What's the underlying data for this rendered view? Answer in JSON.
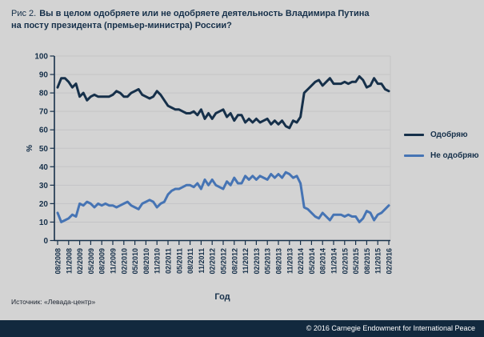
{
  "title": {
    "prefix": "Рис 2.",
    "line1": "Вы в целом одобряете или не одобряете деятельность Владимира Путина",
    "line2": "на посту президента (премьер-министра) России?"
  },
  "source": "Источник: «Левада-центр»",
  "footer": "© 2016 Carnegie Endowment for International Peace",
  "colors": {
    "background": "#d3d3d3",
    "axis_and_text": "#16304a",
    "approve_line": "#16304a",
    "disapprove_line": "#4674b4",
    "gridline": "#c4c4c6",
    "footer_bg": "#12293e",
    "footer_text": "#ffffff"
  },
  "chart_data": {
    "type": "line",
    "title": "Вы в целом одобряете или не одобряете деятельность Владимира Путина на посту президента (премьер-министра) России?",
    "xlabel": "Год",
    "ylabel": "%",
    "ylim": [
      0,
      100
    ],
    "y_ticks": [
      0,
      10,
      20,
      30,
      40,
      50,
      60,
      70,
      80,
      90,
      100
    ],
    "grid": "horizontal",
    "legend_position": "right",
    "x_unit": "monthly points from 08/2008 to 02/2016; ticks every 3 months",
    "x_tick_labels": [
      "08/2008",
      "11/2008",
      "02/2009",
      "05/2009",
      "08/2009",
      "11/2009",
      "02/2010",
      "05/2010",
      "08/2010",
      "11/2010",
      "02/2011",
      "05/2011",
      "08/2011",
      "11/2011",
      "02/2012",
      "05/2012",
      "08/2012",
      "11/2012",
      "02/2013",
      "05/2013",
      "08/2013",
      "11/2013",
      "02/2014",
      "05/2014",
      "08/2014",
      "11/2014",
      "02/2015",
      "05/2015",
      "08/2015",
      "11/2015",
      "02/2016"
    ],
    "series": [
      {
        "name": "Одобряю",
        "color": "#16304a",
        "values": [
          83,
          88,
          88,
          86,
          83,
          85,
          78,
          80,
          76,
          78,
          79,
          78,
          78,
          78,
          78,
          79,
          81,
          80,
          78,
          78,
          80,
          81,
          82,
          79,
          78,
          77,
          78,
          81,
          79,
          76,
          73,
          72,
          71,
          71,
          70,
          69,
          69,
          70,
          68,
          71,
          66,
          69,
          66,
          69,
          70,
          71,
          67,
          69,
          65,
          68,
          68,
          64,
          66,
          64,
          66,
          64,
          65,
          66,
          63,
          65,
          63,
          65,
          62,
          61,
          65,
          64,
          67,
          80,
          82,
          84,
          86,
          87,
          84,
          86,
          88,
          85,
          85,
          85,
          86,
          85,
          86,
          86,
          89,
          87,
          83,
          84,
          88,
          85,
          85,
          82,
          81
        ]
      },
      {
        "name": "Не одобряю",
        "color": "#4674b4",
        "values": [
          15,
          10,
          11,
          12,
          14,
          13,
          20,
          19,
          21,
          20,
          18,
          20,
          19,
          20,
          19,
          19,
          18,
          19,
          20,
          21,
          19,
          18,
          17,
          20,
          21,
          22,
          21,
          18,
          20,
          21,
          25,
          27,
          28,
          28,
          29,
          30,
          30,
          29,
          31,
          28,
          33,
          30,
          33,
          30,
          29,
          28,
          32,
          30,
          34,
          31,
          31,
          35,
          33,
          35,
          33,
          35,
          34,
          33,
          36,
          34,
          36,
          34,
          37,
          36,
          34,
          35,
          31,
          18,
          17,
          15,
          13,
          12,
          15,
          13,
          11,
          14,
          14,
          14,
          13,
          14,
          13,
          13,
          10,
          12,
          16,
          15,
          11,
          14,
          15,
          17,
          19
        ]
      }
    ]
  }
}
